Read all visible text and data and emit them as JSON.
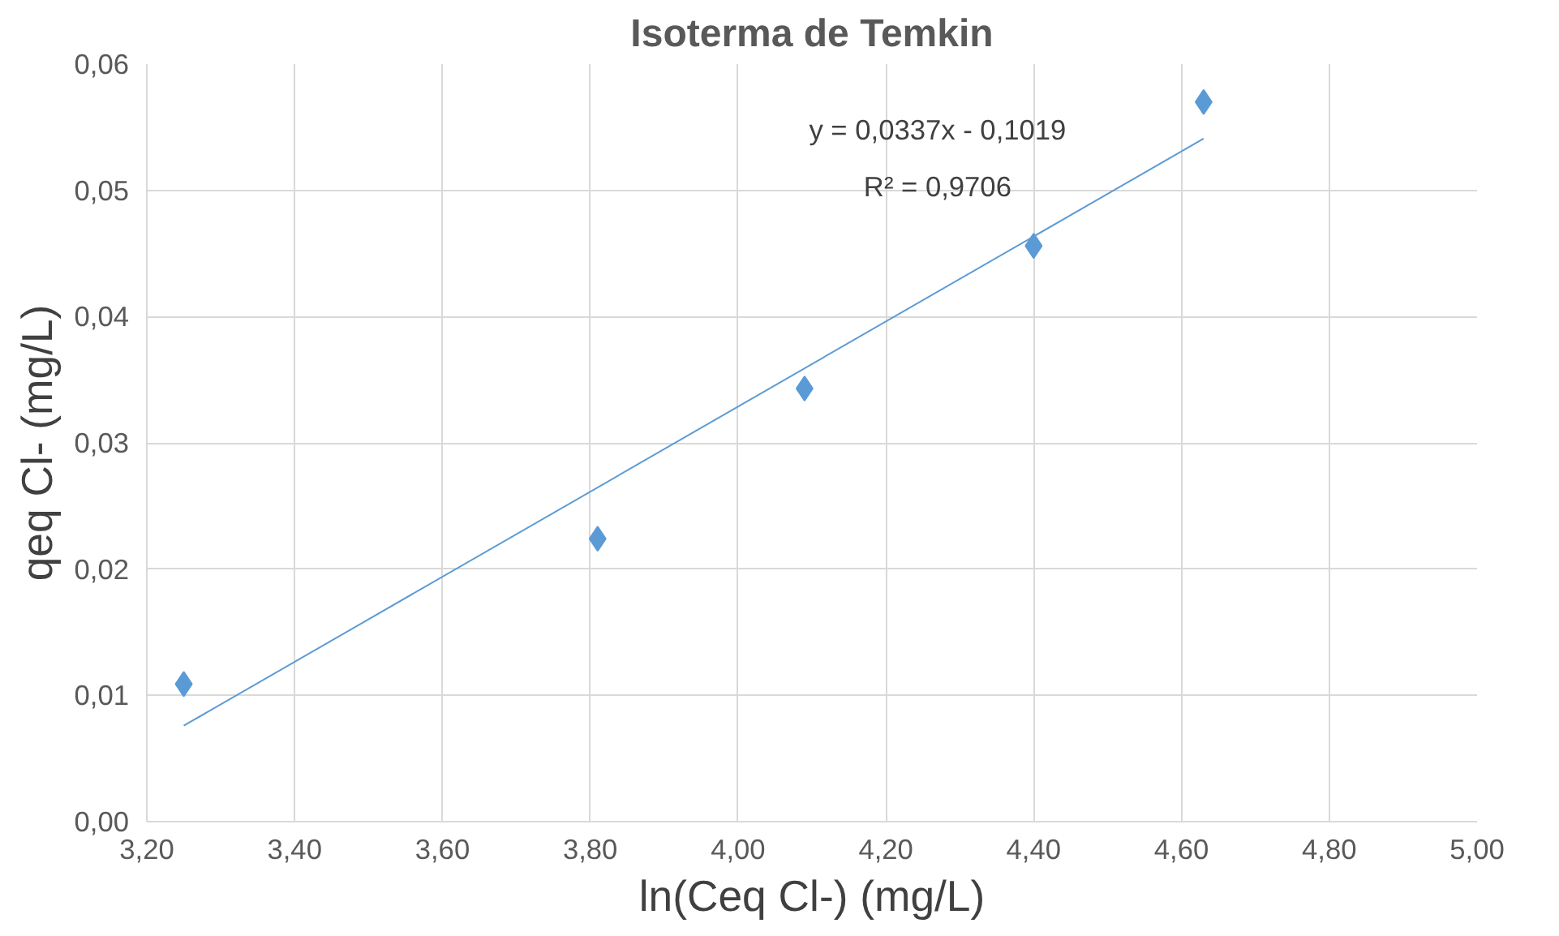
{
  "chart_data": {
    "type": "scatter",
    "title": "Isoterma de Temkin",
    "xlabel": "ln(Ceq Cl-) (mg/L)",
    "ylabel": "qeq Cl- (mg/L)",
    "x": [
      3.25,
      3.81,
      4.09,
      4.4,
      4.63
    ],
    "series": [
      {
        "color": "#5b9bd5",
        "marker": "diamond",
        "values": [
          0.0109,
          0.0224,
          0.0343,
          0.0456,
          0.057
        ]
      },
      {
        "type": "line",
        "color": "#5b9bd5",
        "marker": "none",
        "line_style": "solid",
        "x": [
          3.25,
          4.63
        ],
        "values": [
          0.0076,
          0.0541
        ]
      }
    ],
    "annotations": [
      "y = 0,0337x - 0,1019",
      "R² = 0,9706"
    ],
    "xlim": [
      3.2,
      5.0
    ],
    "xticks": [
      {
        "value": 3.2,
        "label": "3,20"
      },
      {
        "value": 3.4,
        "label": "3,40"
      },
      {
        "value": 3.6,
        "label": "3,60"
      },
      {
        "value": 3.8,
        "label": "3,80"
      },
      {
        "value": 4.0,
        "label": "4,00"
      },
      {
        "value": 4.2,
        "label": "4,20"
      },
      {
        "value": 4.4,
        "label": "4,40"
      },
      {
        "value": 4.6,
        "label": "4,60"
      },
      {
        "value": 4.8,
        "label": "4,80"
      },
      {
        "value": 5.0,
        "label": "5,00"
      }
    ],
    "ylim": [
      0,
      0.06
    ],
    "yticks": [
      {
        "value": 0,
        "label": "0,00"
      },
      {
        "value": 0.01,
        "label": "0,01"
      },
      {
        "value": 0.02,
        "label": "0,02"
      },
      {
        "value": 0.03,
        "label": "0,03"
      },
      {
        "value": 0.04,
        "label": "0,04"
      },
      {
        "value": 0.05,
        "label": "0,05"
      },
      {
        "value": 0.06,
        "label": "0,06"
      }
    ],
    "grid": true
  }
}
